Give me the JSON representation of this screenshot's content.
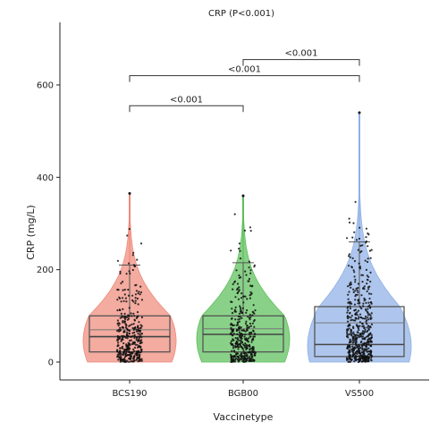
{
  "chart_data": {
    "type": "violin-box-jitter",
    "title": "CRP (P<0.001)",
    "xlabel": "Vaccinetype",
    "ylabel": "CRP (mg/L)",
    "ylim": [
      0,
      680
    ],
    "yticks": [
      0,
      200,
      400,
      600
    ],
    "grid": false,
    "legend": "none",
    "categories": [
      "BCS190",
      "BGB00",
      "VS500"
    ],
    "colors": [
      "#f08a7c",
      "#5cbf5a",
      "#8fb0e6"
    ],
    "groups": [
      {
        "name": "BCS190",
        "min": 0,
        "q1": 22,
        "median": 55,
        "q3": 100,
        "whisker_high": 210,
        "max": 365,
        "mean": 70
      },
      {
        "name": "BGB00",
        "min": 0,
        "q1": 22,
        "median": 60,
        "q3": 100,
        "whisker_high": 215,
        "max": 360,
        "mean": 72
      },
      {
        "name": "VS500",
        "min": 0,
        "q1": 12,
        "median": 38,
        "q3": 120,
        "whisker_high": 260,
        "max": 540,
        "mean": 85
      }
    ],
    "comparisons": [
      {
        "from": "BCS190",
        "to": "BGB00",
        "label": "<0.001",
        "y": 555
      },
      {
        "from": "BCS190",
        "to": "VS500",
        "label": "<0.001",
        "y": 620
      },
      {
        "from": "BGB00",
        "to": "VS500",
        "label": "<0.001",
        "y": 655
      }
    ]
  }
}
